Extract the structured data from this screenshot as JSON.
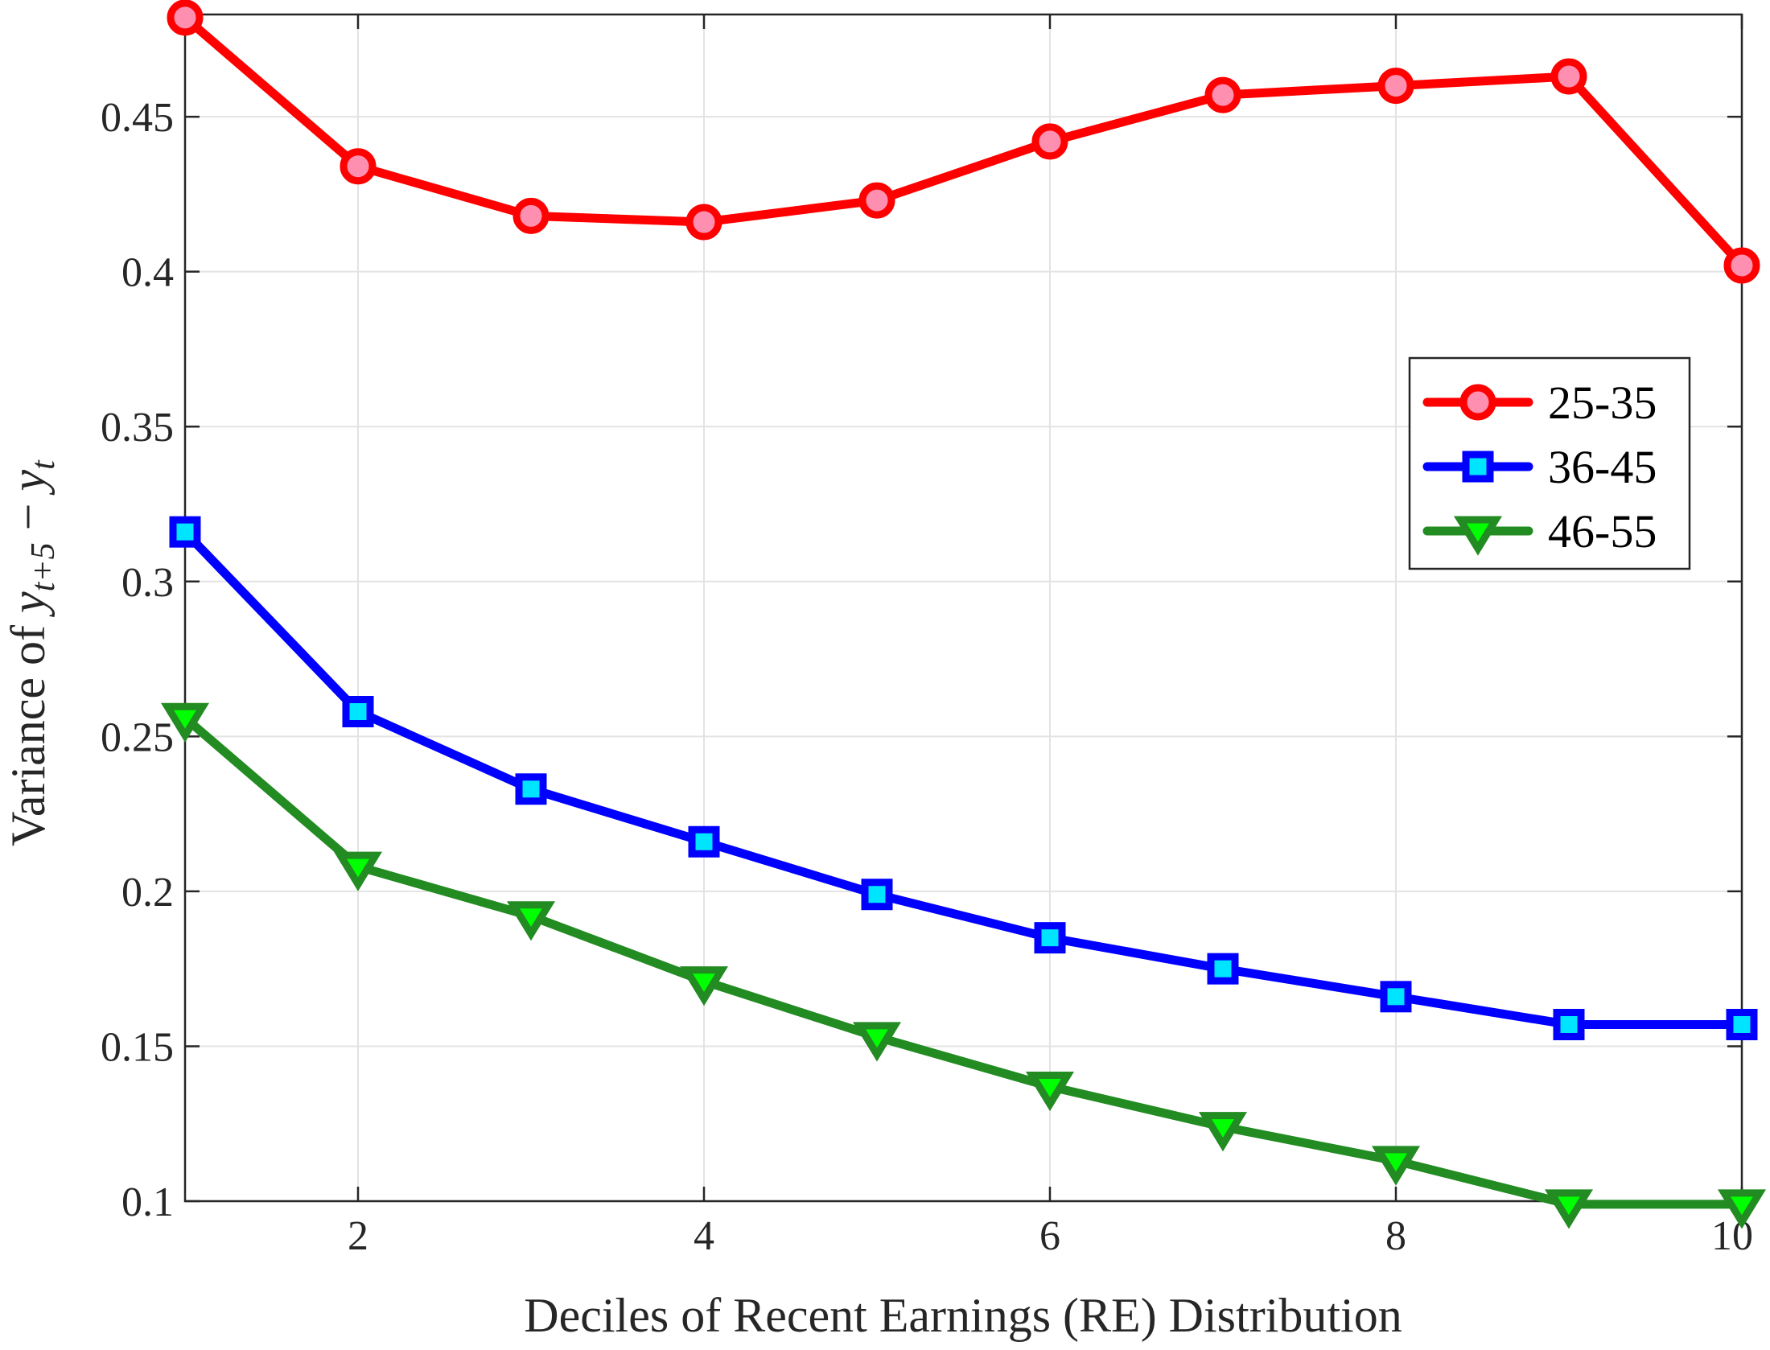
{
  "chart_data": {
    "type": "line",
    "title": "",
    "xlabel": "Deciles of Recent Earnings (RE) Distribution",
    "ylabel": {
      "prefix": "Variance of ",
      "var1": "y",
      "sub1": "t+5",
      "op": " − ",
      "var2": "y",
      "sub2": "t"
    },
    "xlim": [
      1,
      10
    ],
    "ylim": [
      0.1,
      0.483
    ],
    "xticks": [
      2,
      4,
      6,
      8,
      10
    ],
    "xtick_labels": [
      "2",
      "4",
      "6",
      "8",
      "10"
    ],
    "yticks": [
      0.1,
      0.15,
      0.2,
      0.25,
      0.3,
      0.35,
      0.4,
      0.45
    ],
    "ytick_labels": [
      "0.1",
      "0.15",
      "0.2",
      "0.25",
      "0.3",
      "0.35",
      "0.4",
      "0.45"
    ],
    "grid": true,
    "legend_position": "right",
    "x": [
      1,
      2,
      3,
      4,
      5,
      6,
      7,
      8,
      9,
      10
    ],
    "series": [
      {
        "name": "25-35",
        "color": "#ff0000",
        "marker": "circle",
        "marker_fill": "#ff8fb0",
        "values": [
          0.482,
          0.434,
          0.418,
          0.416,
          0.423,
          0.442,
          0.457,
          0.46,
          0.463,
          0.402
        ]
      },
      {
        "name": "36-45",
        "color": "#0000ff",
        "marker": "square",
        "marker_fill": "#00e5ff",
        "values": [
          0.316,
          0.258,
          0.233,
          0.216,
          0.199,
          0.185,
          0.175,
          0.166,
          0.157,
          0.157
        ]
      },
      {
        "name": "46-55",
        "color": "#228b22",
        "marker": "triangle-down",
        "marker_fill": "#00ff00",
        "values": [
          0.256,
          0.208,
          0.192,
          0.171,
          0.153,
          0.137,
          0.124,
          0.113,
          0.099,
          0.099
        ]
      }
    ]
  }
}
